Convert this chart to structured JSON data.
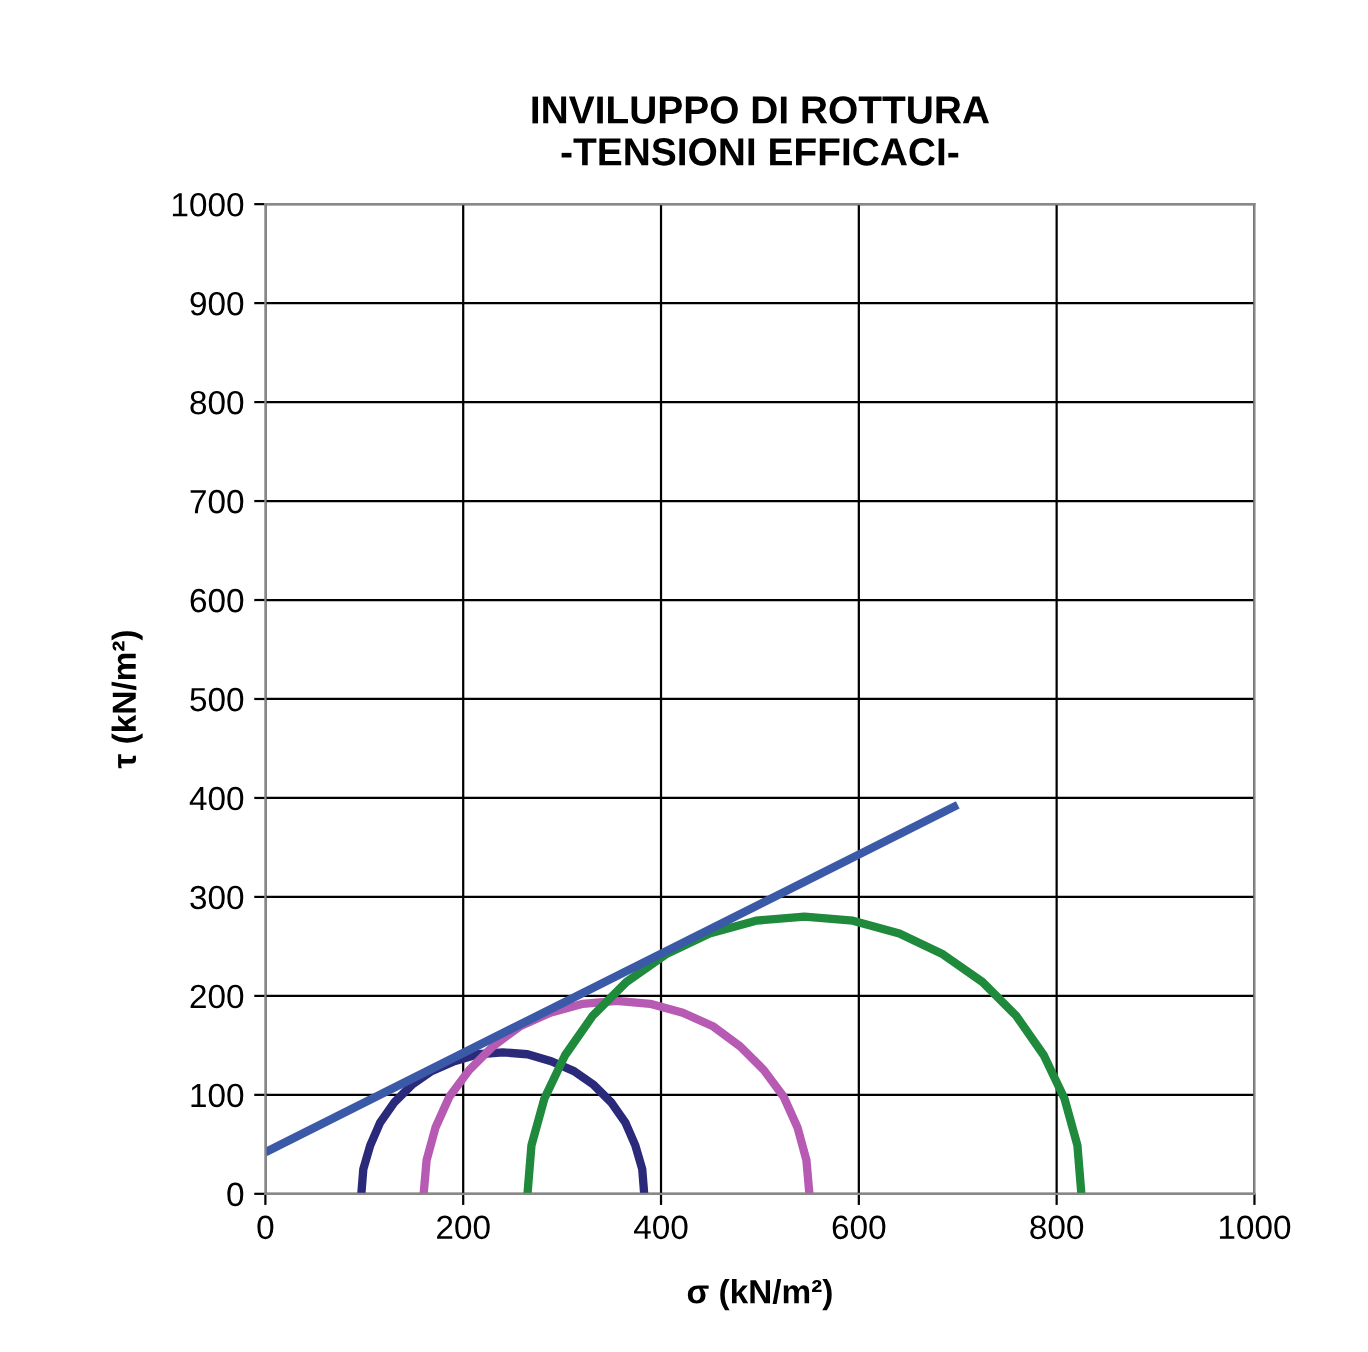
{
  "chart_data": {
    "type": "line",
    "title": "INVILUPPO DI ROTTURA\n-TENSIONI EFFICACI-",
    "xlabel": "σ (kN/m²)",
    "ylabel": "τ (kN/m²)",
    "xlim": [
      0,
      1000
    ],
    "ylim": [
      0,
      1000
    ],
    "xticks": [
      0,
      200,
      400,
      600,
      800,
      1000
    ],
    "yticks": [
      0,
      100,
      200,
      300,
      400,
      500,
      600,
      700,
      800,
      900,
      1000
    ],
    "grid": true,
    "marker": "none",
    "line_style": "solid",
    "series": [
      {
        "color": "#2b2a7a",
        "x": [
          383,
          381,
          374,
          364,
          350,
          332,
          312,
          289,
          265,
          240,
          215,
          191,
          168,
          148,
          130,
          116,
          106,
          99,
          97
        ],
        "values": [
          0,
          25,
          49,
          72,
          92,
          110,
          124,
          134,
          141,
          143,
          141,
          134,
          124,
          110,
          92,
          72,
          49,
          25,
          0
        ]
      },
      {
        "color": "#b65ab4",
        "x": [
          550,
          547,
          538,
          524,
          504,
          480,
          453,
          422,
          389,
          355,
          321,
          288,
          257,
          230,
          206,
          186,
          172,
          163,
          160
        ],
        "values": [
          0,
          34,
          67,
          98,
          125,
          149,
          169,
          183,
          192,
          195,
          192,
          183,
          169,
          149,
          125,
          98,
          67,
          34,
          0
        ]
      },
      {
        "color": "#1f8a3c",
        "x": [
          825,
          821,
          808,
          787,
          759,
          725,
          685,
          641,
          594,
          545,
          496,
          449,
          405,
          365,
          331,
          303,
          282,
          269,
          265
        ],
        "values": [
          0,
          49,
          96,
          140,
          180,
          214,
          242,
          263,
          276,
          280,
          276,
          263,
          242,
          214,
          180,
          140,
          96,
          49,
          0
        ]
      },
      {
        "color": "#3a5aa8",
        "x": [
          0,
          700
        ],
        "values": [
          42,
          393
        ]
      }
    ]
  }
}
